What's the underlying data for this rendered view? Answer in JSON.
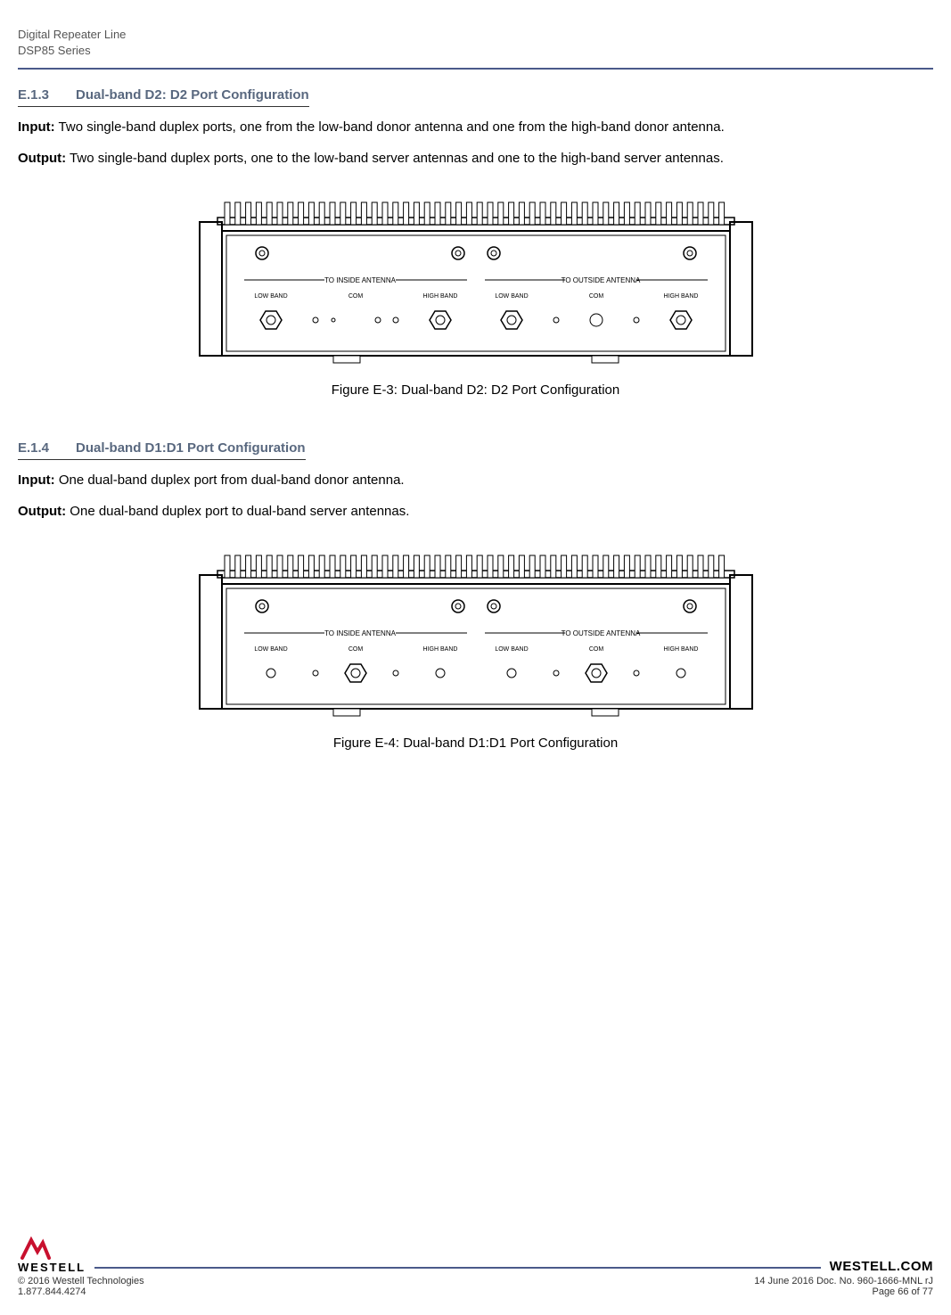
{
  "header": {
    "line1": "Digital Repeater Line",
    "line2": "DSP85 Series"
  },
  "section1": {
    "number": "E.1.3",
    "title": "Dual-band D2: D2 Port Configuration",
    "input_label": "Input:",
    "input_text": " Two single-band duplex ports, one from the low-band donor antenna and one from the high-band donor antenna.",
    "output_label": "Output:",
    "output_text": " Two single-band duplex ports, one to the low-band server antennas and one to the high-band server antennas.",
    "figure_caption": "Figure E-3: Dual-band D2: D2 Port Configuration"
  },
  "section2": {
    "number": "E.1.4",
    "title": "Dual-band D1:D1 Port Configuration",
    "input_label": "Input:",
    "input_text": " One dual-band duplex port from dual-band donor antenna.",
    "output_label": "Output:",
    "output_text": " One dual-band duplex port to dual-band server antennas.",
    "figure_caption": "Figure E-4: Dual-band D1:D1 Port Configuration"
  },
  "device": {
    "left_section_label": "TO INSIDE ANTENNA",
    "right_section_label": "TO OUTSIDE ANTENNA",
    "port_low": "LOW BAND",
    "port_com": "COM",
    "port_high": "HIGH BAND"
  },
  "footer": {
    "brand": "WESTELL",
    "brand_url": "WESTELL.COM",
    "copyright": "© 2016 Westell Technologies",
    "doc": "14 June 2016 Doc. No. 960-1666-MNL rJ",
    "phone": "1.877.844.4274",
    "page": "Page 66 of 77"
  },
  "colors": {
    "heading": "#59687f",
    "divider": "#4a5a8a",
    "logo_red": "#c8102e"
  }
}
